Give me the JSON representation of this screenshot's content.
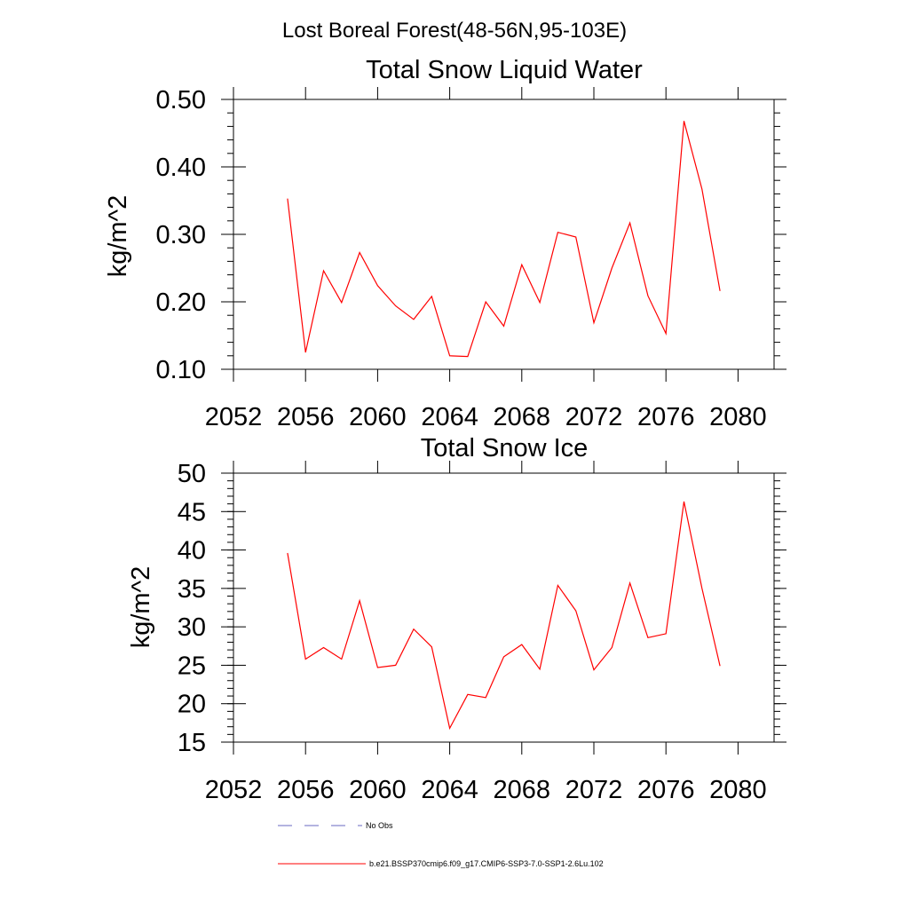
{
  "figure": {
    "title": "Lost Boreal Forest(48-56N,95-103E)"
  },
  "chart_data": [
    {
      "type": "line",
      "title": "Total Snow Liquid Water",
      "xlabel": "",
      "ylabel": "kg/m^2",
      "xlim": [
        2052,
        2082
      ],
      "ylim": [
        0.1,
        0.5
      ],
      "grid": false,
      "x_ticks": [
        2052,
        2056,
        2060,
        2064,
        2068,
        2072,
        2076,
        2080
      ],
      "x_tick_labels": [
        "2052",
        "2056",
        "2060",
        "2064",
        "2068",
        "2072",
        "2076",
        "2080"
      ],
      "y_ticks": [
        0.1,
        0.2,
        0.3,
        0.4,
        0.5
      ],
      "y_tick_labels": [
        "0.10",
        "0.20",
        "0.30",
        "0.40",
        "0.50"
      ],
      "x": [
        2055,
        2056,
        2057,
        2058,
        2059,
        2060,
        2061,
        2062,
        2063,
        2064,
        2065,
        2066,
        2067,
        2068,
        2069,
        2070,
        2071,
        2072,
        2073,
        2074,
        2075,
        2076,
        2077,
        2078,
        2079
      ],
      "series": [
        {
          "color": "#ff0000",
          "values": [
            0.353,
            0.125,
            0.246,
            0.199,
            0.273,
            0.224,
            0.194,
            0.174,
            0.208,
            0.12,
            0.119,
            0.2,
            0.164,
            0.255,
            0.199,
            0.303,
            0.296,
            0.169,
            0.25,
            0.317,
            0.209,
            0.153,
            0.468,
            0.367,
            0.216
          ]
        }
      ]
    },
    {
      "type": "line",
      "title": "Total Snow Ice",
      "xlabel": "",
      "ylabel": "kg/m^2",
      "xlim": [
        2052,
        2082
      ],
      "ylim": [
        15,
        50
      ],
      "grid": false,
      "x_ticks": [
        2052,
        2056,
        2060,
        2064,
        2068,
        2072,
        2076,
        2080
      ],
      "x_tick_labels": [
        "2052",
        "2056",
        "2060",
        "2064",
        "2068",
        "2072",
        "2076",
        "2080"
      ],
      "y_ticks": [
        15,
        20,
        25,
        30,
        35,
        40,
        45,
        50
      ],
      "y_tick_labels": [
        "15",
        "20",
        "25",
        "30",
        "35",
        "40",
        "45",
        "50"
      ],
      "x": [
        2055,
        2056,
        2057,
        2058,
        2059,
        2060,
        2061,
        2062,
        2063,
        2064,
        2065,
        2066,
        2067,
        2068,
        2069,
        2070,
        2071,
        2072,
        2073,
        2074,
        2075,
        2076,
        2077,
        2078,
        2079
      ],
      "series": [
        {
          "color": "#ff0000",
          "values": [
            39.6,
            25.8,
            27.3,
            25.8,
            33.4,
            24.7,
            25.0,
            29.7,
            27.4,
            16.8,
            21.2,
            20.8,
            26.1,
            27.7,
            24.5,
            35.4,
            32.1,
            24.4,
            27.3,
            35.7,
            28.6,
            29.1,
            46.3,
            35.0,
            24.9
          ]
        }
      ]
    }
  ],
  "legend": {
    "items": [
      {
        "label": "No Obs",
        "color": "#6a6ac0",
        "style": "dashed"
      },
      {
        "label": "b.e21.BSSP370cmip6.f09_g17.CMIP6-SSP3-7.0-SSP1-2.6Lu.102",
        "color": "#ff0000",
        "style": "solid"
      }
    ]
  }
}
